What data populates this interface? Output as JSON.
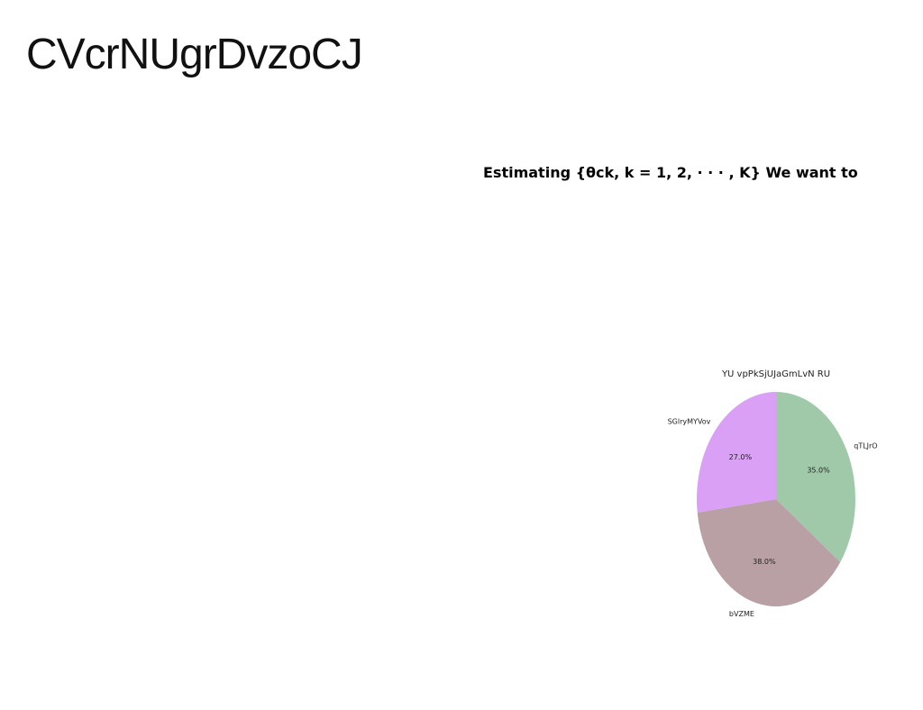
{
  "document": {
    "title": "CVcrNUgrDvzoCJ",
    "heading": "Estimating {θck, k = 1, 2, · · · , K} We want to"
  },
  "chart_data": {
    "type": "pie",
    "title": "YU vpPkSjUJaGmLvN RU",
    "slices": [
      {
        "label": "qTLJrO",
        "value": 35.0,
        "pct_label": "35.0%",
        "color": "#a0c9aa"
      },
      {
        "label": "bVZME",
        "value": 38.0,
        "pct_label": "38.0%",
        "color": "#b8a0a5"
      },
      {
        "label": "SGlryMYVov",
        "value": 27.0,
        "pct_label": "27.0%",
        "color": "#d9a0f5"
      }
    ],
    "start_angle_deg": 90,
    "direction": "clockwise",
    "legend": "none"
  }
}
